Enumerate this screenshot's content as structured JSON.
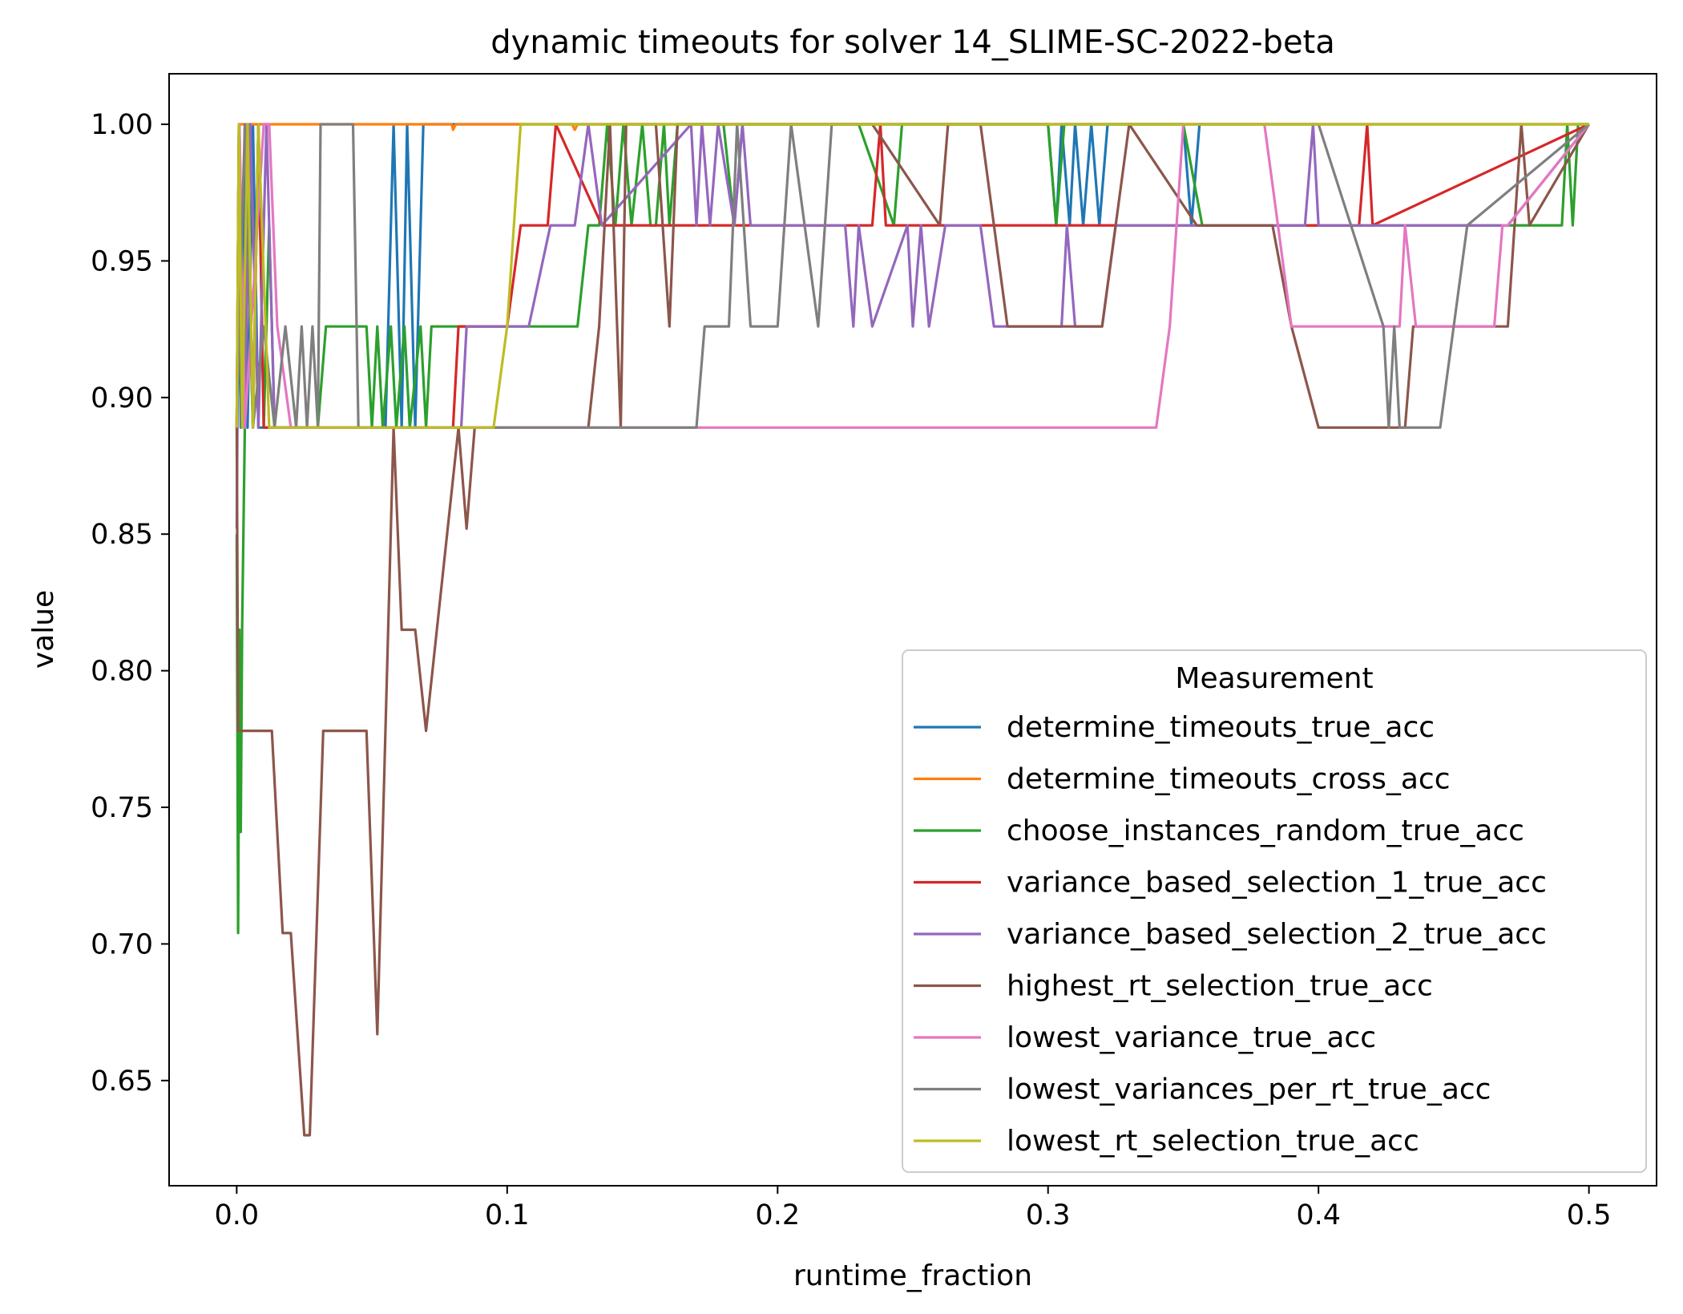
{
  "chart_data": {
    "type": "line",
    "title": "dynamic timeouts for solver 14_SLIME-SC-2022-beta",
    "xlabel": "runtime_fraction",
    "ylabel": "value",
    "xlim": [
      -0.025,
      0.525
    ],
    "ylim": [
      0.6115,
      1.0185
    ],
    "xticks": [
      0.0,
      0.1,
      0.2,
      0.3,
      0.4,
      0.5
    ],
    "xtick_labels": [
      "0.0",
      "0.1",
      "0.2",
      "0.3",
      "0.4",
      "0.5"
    ],
    "yticks": [
      0.65,
      0.7,
      0.75,
      0.8,
      0.85,
      0.9,
      0.95,
      1.0
    ],
    "ytick_labels": [
      "0.65",
      "0.70",
      "0.75",
      "0.80",
      "0.85",
      "0.90",
      "0.95",
      "1.00"
    ],
    "grid": false,
    "legend": {
      "title": "Measurement",
      "position": "lower-right"
    },
    "series": [
      {
        "name": "determine_timeouts_true_acc",
        "color": "#1f77b4",
        "x": [
          0.0,
          0.0008,
          0.0015,
          0.003,
          0.004,
          0.006,
          0.008,
          0.012,
          0.016,
          0.02,
          0.024,
          0.035,
          0.045,
          0.053,
          0.055,
          0.058,
          0.061,
          0.063,
          0.066,
          0.069,
          0.072,
          0.28,
          0.3,
          0.303,
          0.305,
          0.308,
          0.31,
          0.313,
          0.316,
          0.319,
          0.322,
          0.33,
          0.35,
          0.353,
          0.356,
          0.358,
          0.5
        ],
        "y": [
          0.889,
          1.0,
          0.889,
          1.0,
          0.889,
          1.0,
          0.889,
          0.889,
          0.889,
          0.889,
          0.889,
          0.889,
          0.889,
          0.889,
          0.889,
          1.0,
          0.889,
          1.0,
          0.889,
          1.0,
          1.0,
          1.0,
          1.0,
          0.963,
          1.0,
          0.963,
          1.0,
          0.963,
          1.0,
          0.963,
          1.0,
          1.0,
          1.0,
          0.963,
          1.0,
          1.0,
          1.0
        ]
      },
      {
        "name": "determine_timeouts_cross_acc",
        "color": "#ff7f0e",
        "x": [
          0.0,
          0.0008,
          0.003,
          0.005,
          0.008,
          0.1,
          0.0795,
          0.08,
          0.081,
          0.124,
          0.125,
          0.126,
          0.5
        ],
        "y": [
          0.889,
          1.0,
          1.0,
          1.0,
          1.0,
          1.0,
          1.0,
          0.998,
          1.0,
          1.0,
          0.998,
          1.0,
          1.0
        ]
      },
      {
        "name": "choose_instances_random_true_acc",
        "color": "#2ca02c",
        "x": [
          0.0,
          0.0005,
          0.001,
          0.0015,
          0.002,
          0.003,
          0.004,
          0.006,
          0.008,
          0.01,
          0.012,
          0.014,
          0.016,
          0.02,
          0.025,
          0.03,
          0.033,
          0.048,
          0.05,
          0.052,
          0.054,
          0.057,
          0.059,
          0.062,
          0.064,
          0.068,
          0.07,
          0.072,
          0.074,
          0.078,
          0.08,
          0.082,
          0.084,
          0.118,
          0.12,
          0.126,
          0.13,
          0.134,
          0.137,
          0.14,
          0.143,
          0.146,
          0.15,
          0.153,
          0.155,
          0.158,
          0.16,
          0.163,
          0.167,
          0.18,
          0.184,
          0.187,
          0.19,
          0.195,
          0.215,
          0.23,
          0.243,
          0.246,
          0.3,
          0.303,
          0.306,
          0.31,
          0.325,
          0.35,
          0.357,
          0.36,
          0.42,
          0.49,
          0.492,
          0.494,
          0.496,
          0.5
        ],
        "y": [
          0.85,
          0.704,
          0.815,
          0.741,
          0.815,
          0.889,
          0.963,
          0.889,
          1.0,
          0.889,
          0.963,
          0.889,
          0.889,
          0.889,
          0.889,
          0.889,
          0.926,
          0.926,
          0.889,
          0.926,
          0.889,
          0.926,
          0.889,
          0.926,
          0.889,
          0.926,
          0.889,
          0.926,
          0.926,
          0.926,
          0.926,
          0.926,
          0.926,
          0.926,
          0.926,
          0.926,
          0.963,
          0.963,
          1.0,
          0.963,
          1.0,
          0.963,
          1.0,
          0.963,
          0.963,
          1.0,
          0.963,
          1.0,
          1.0,
          1.0,
          0.963,
          1.0,
          1.0,
          1.0,
          1.0,
          1.0,
          0.963,
          1.0,
          1.0,
          0.963,
          1.0,
          1.0,
          1.0,
          1.0,
          0.963,
          0.963,
          0.963,
          0.963,
          1.0,
          0.963,
          1.0,
          1.0
        ]
      },
      {
        "name": "variance_based_selection_1_true_acc",
        "color": "#d62728",
        "x": [
          0.0,
          0.0008,
          0.002,
          0.004,
          0.006,
          0.008,
          0.01,
          0.016,
          0.02,
          0.08,
          0.082,
          0.095,
          0.1,
          0.105,
          0.115,
          0.118,
          0.135,
          0.14,
          0.2,
          0.235,
          0.238,
          0.24,
          0.4,
          0.415,
          0.418,
          0.42,
          0.5
        ],
        "y": [
          0.889,
          1.0,
          0.889,
          1.0,
          0.889,
          1.0,
          0.889,
          0.889,
          0.889,
          0.889,
          0.926,
          0.926,
          0.926,
          0.963,
          0.963,
          1.0,
          0.963,
          0.963,
          0.963,
          0.963,
          1.0,
          0.963,
          0.963,
          0.963,
          1.0,
          0.963,
          1.0
        ]
      },
      {
        "name": "variance_based_selection_2_true_acc",
        "color": "#9467bd",
        "x": [
          0.0,
          0.001,
          0.003,
          0.005,
          0.008,
          0.011,
          0.014,
          0.018,
          0.02,
          0.083,
          0.085,
          0.108,
          0.116,
          0.125,
          0.13,
          0.135,
          0.168,
          0.17,
          0.172,
          0.175,
          0.178,
          0.184,
          0.187,
          0.19,
          0.225,
          0.228,
          0.23,
          0.235,
          0.248,
          0.25,
          0.253,
          0.256,
          0.262,
          0.275,
          0.28,
          0.305,
          0.307,
          0.31,
          0.32,
          0.325,
          0.38,
          0.395,
          0.398,
          0.4,
          0.47,
          0.5
        ],
        "y": [
          0.852,
          1.0,
          0.889,
          1.0,
          0.889,
          1.0,
          0.889,
          0.889,
          0.889,
          0.889,
          0.926,
          0.926,
          0.963,
          0.963,
          1.0,
          0.963,
          1.0,
          0.963,
          1.0,
          0.963,
          1.0,
          0.963,
          1.0,
          0.963,
          0.963,
          0.926,
          0.963,
          0.926,
          0.963,
          0.926,
          0.963,
          0.926,
          0.963,
          0.963,
          0.926,
          0.926,
          0.963,
          0.926,
          0.926,
          0.963,
          0.963,
          0.963,
          1.0,
          0.963,
          0.963,
          1.0
        ]
      },
      {
        "name": "highest_rt_selection_true_acc",
        "color": "#8c564b",
        "x": [
          0.0,
          0.0005,
          0.013,
          0.017,
          0.02,
          0.025,
          0.027,
          0.032,
          0.048,
          0.052,
          0.058,
          0.061,
          0.066,
          0.07,
          0.082,
          0.085,
          0.088,
          0.1,
          0.13,
          0.134,
          0.138,
          0.142,
          0.144,
          0.147,
          0.155,
          0.16,
          0.163,
          0.175,
          0.18,
          0.193,
          0.235,
          0.26,
          0.263,
          0.265,
          0.275,
          0.285,
          0.295,
          0.32,
          0.33,
          0.355,
          0.36,
          0.38,
          0.383,
          0.39,
          0.4,
          0.42,
          0.432,
          0.435,
          0.44,
          0.448,
          0.47,
          0.475,
          0.478,
          0.5
        ],
        "y": [
          0.889,
          0.778,
          0.778,
          0.704,
          0.704,
          0.63,
          0.63,
          0.778,
          0.778,
          0.667,
          0.889,
          0.815,
          0.815,
          0.778,
          0.889,
          0.852,
          0.889,
          0.889,
          0.889,
          0.926,
          1.0,
          0.889,
          1.0,
          1.0,
          1.0,
          0.926,
          1.0,
          1.0,
          1.0,
          1.0,
          1.0,
          0.963,
          1.0,
          1.0,
          1.0,
          0.926,
          0.926,
          0.926,
          1.0,
          0.963,
          0.963,
          0.963,
          0.963,
          0.926,
          0.889,
          0.889,
          0.889,
          0.926,
          0.926,
          0.926,
          0.926,
          1.0,
          0.963,
          1.0
        ]
      },
      {
        "name": "lowest_variance_true_acc",
        "color": "#e377c2",
        "x": [
          0.0,
          0.001,
          0.003,
          0.01,
          0.012,
          0.015,
          0.02,
          0.1,
          0.34,
          0.345,
          0.35,
          0.38,
          0.385,
          0.39,
          0.41,
          0.43,
          0.432,
          0.436,
          0.44,
          0.465,
          0.468,
          0.47,
          0.5
        ],
        "y": [
          0.889,
          1.0,
          0.889,
          1.0,
          1.0,
          0.926,
          0.889,
          0.889,
          0.889,
          0.926,
          1.0,
          1.0,
          0.963,
          0.926,
          0.926,
          0.926,
          0.963,
          0.926,
          0.926,
          0.926,
          0.963,
          0.963,
          1.0
        ]
      },
      {
        "name": "lowest_variances_per_rt_true_acc",
        "color": "#7f7f7f",
        "x": [
          0.0,
          0.003,
          0.006,
          0.01,
          0.014,
          0.018,
          0.022,
          0.024,
          0.026,
          0.028,
          0.03,
          0.031,
          0.043,
          0.045,
          0.17,
          0.173,
          0.182,
          0.185,
          0.19,
          0.2,
          0.205,
          0.215,
          0.22,
          0.24,
          0.27,
          0.3,
          0.4,
          0.424,
          0.426,
          0.428,
          0.43,
          0.445,
          0.455,
          0.5
        ],
        "y": [
          0.889,
          1.0,
          0.889,
          0.926,
          0.889,
          0.926,
          0.889,
          0.926,
          0.889,
          0.926,
          0.889,
          1.0,
          1.0,
          0.889,
          0.889,
          0.926,
          0.926,
          1.0,
          0.926,
          0.926,
          1.0,
          0.926,
          1.0,
          1.0,
          1.0,
          1.0,
          1.0,
          0.926,
          0.889,
          0.926,
          0.889,
          0.889,
          0.963,
          1.0
        ]
      },
      {
        "name": "lowest_rt_selection_true_acc",
        "color": "#bcbd22",
        "x": [
          0.0,
          0.0008,
          0.002,
          0.004,
          0.006,
          0.008,
          0.012,
          0.015,
          0.018,
          0.02,
          0.095,
          0.1,
          0.105,
          0.5
        ],
        "y": [
          0.889,
          1.0,
          0.889,
          1.0,
          0.889,
          1.0,
          0.889,
          0.889,
          0.889,
          0.889,
          0.889,
          0.926,
          1.0,
          1.0
        ]
      }
    ]
  }
}
